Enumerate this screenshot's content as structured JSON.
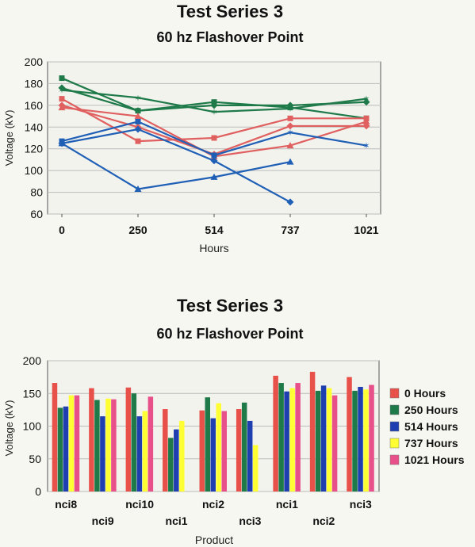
{
  "chart_data": [
    {
      "type": "line",
      "title": "Test Series 3",
      "subtitle": "60 hz Flashover Point",
      "xlabel": "Hours",
      "ylabel": "Voltage (kV)",
      "categories": [
        "0",
        "250",
        "514",
        "737",
        "1021"
      ],
      "ylim": [
        60,
        200
      ],
      "yticks": [
        60,
        80,
        100,
        120,
        140,
        160,
        180,
        200
      ],
      "grid": "horizontal",
      "series": [
        {
          "color": "#1f7a4a",
          "marker": "square",
          "values": [
            185,
            155,
            163,
            158,
            148
          ]
        },
        {
          "color": "#1f7a4a",
          "marker": "diamond",
          "values": [
            176,
            155,
            160,
            160,
            163
          ]
        },
        {
          "color": "#1f7a4a",
          "marker": "star",
          "values": [
            174,
            167,
            154,
            157,
            166
          ]
        },
        {
          "color": "#e06060",
          "marker": "square",
          "values": [
            166,
            127,
            130,
            148,
            148
          ]
        },
        {
          "color": "#e06060",
          "marker": "diamond",
          "values": [
            160,
            140,
            115,
            141,
            141
          ]
        },
        {
          "color": "#e06060",
          "marker": "triangle",
          "values": [
            158,
            150,
            113,
            123,
            145
          ]
        },
        {
          "color": "#1f5fb5",
          "marker": "square",
          "values": [
            127,
            145,
            114,
            null,
            null
          ]
        },
        {
          "color": "#1f5fb5",
          "marker": "diamond",
          "values": [
            125,
            138,
            109,
            71,
            null
          ]
        },
        {
          "color": "#1f5fb5",
          "marker": "triangle",
          "values": [
            125,
            83,
            94,
            108,
            null
          ]
        },
        {
          "color": "#1f5fb5",
          "marker": "star",
          "values": [
            null,
            null,
            114,
            135,
            123
          ]
        }
      ]
    },
    {
      "type": "bar",
      "title": "Test Series 3",
      "subtitle": "60 hz Flashover Point",
      "xlabel": "Product",
      "ylabel": "Voltage (kV)",
      "categories": [
        "nci8",
        "nci9",
        "nci10",
        "nci1",
        "nci2",
        "nci3",
        "nci1",
        "nci2",
        "nci3"
      ],
      "ylim": [
        0,
        200
      ],
      "yticks": [
        0,
        50,
        100,
        150,
        200
      ],
      "grid": "horizontal",
      "legend": "right",
      "series": [
        {
          "name": "0 Hours",
          "color": "#e8504a",
          "values": [
            166,
            158,
            159,
            126,
            124,
            126,
            177,
            183,
            175
          ]
        },
        {
          "name": "250 Hours",
          "color": "#1f7a4a",
          "values": [
            128,
            140,
            150,
            82,
            144,
            136,
            166,
            154,
            154
          ]
        },
        {
          "name": "514 Hours",
          "color": "#1f3fb0",
          "values": [
            130,
            115,
            115,
            95,
            112,
            108,
            153,
            162,
            160
          ]
        },
        {
          "name": "737 Hours",
          "color": "#ffff33",
          "values": [
            147,
            142,
            123,
            108,
            135,
            71,
            158,
            158,
            156
          ]
        },
        {
          "name": "1021 Hours",
          "color": "#e8508a",
          "values": [
            147,
            141,
            145,
            null,
            123,
            null,
            166,
            147,
            163
          ]
        }
      ]
    }
  ]
}
